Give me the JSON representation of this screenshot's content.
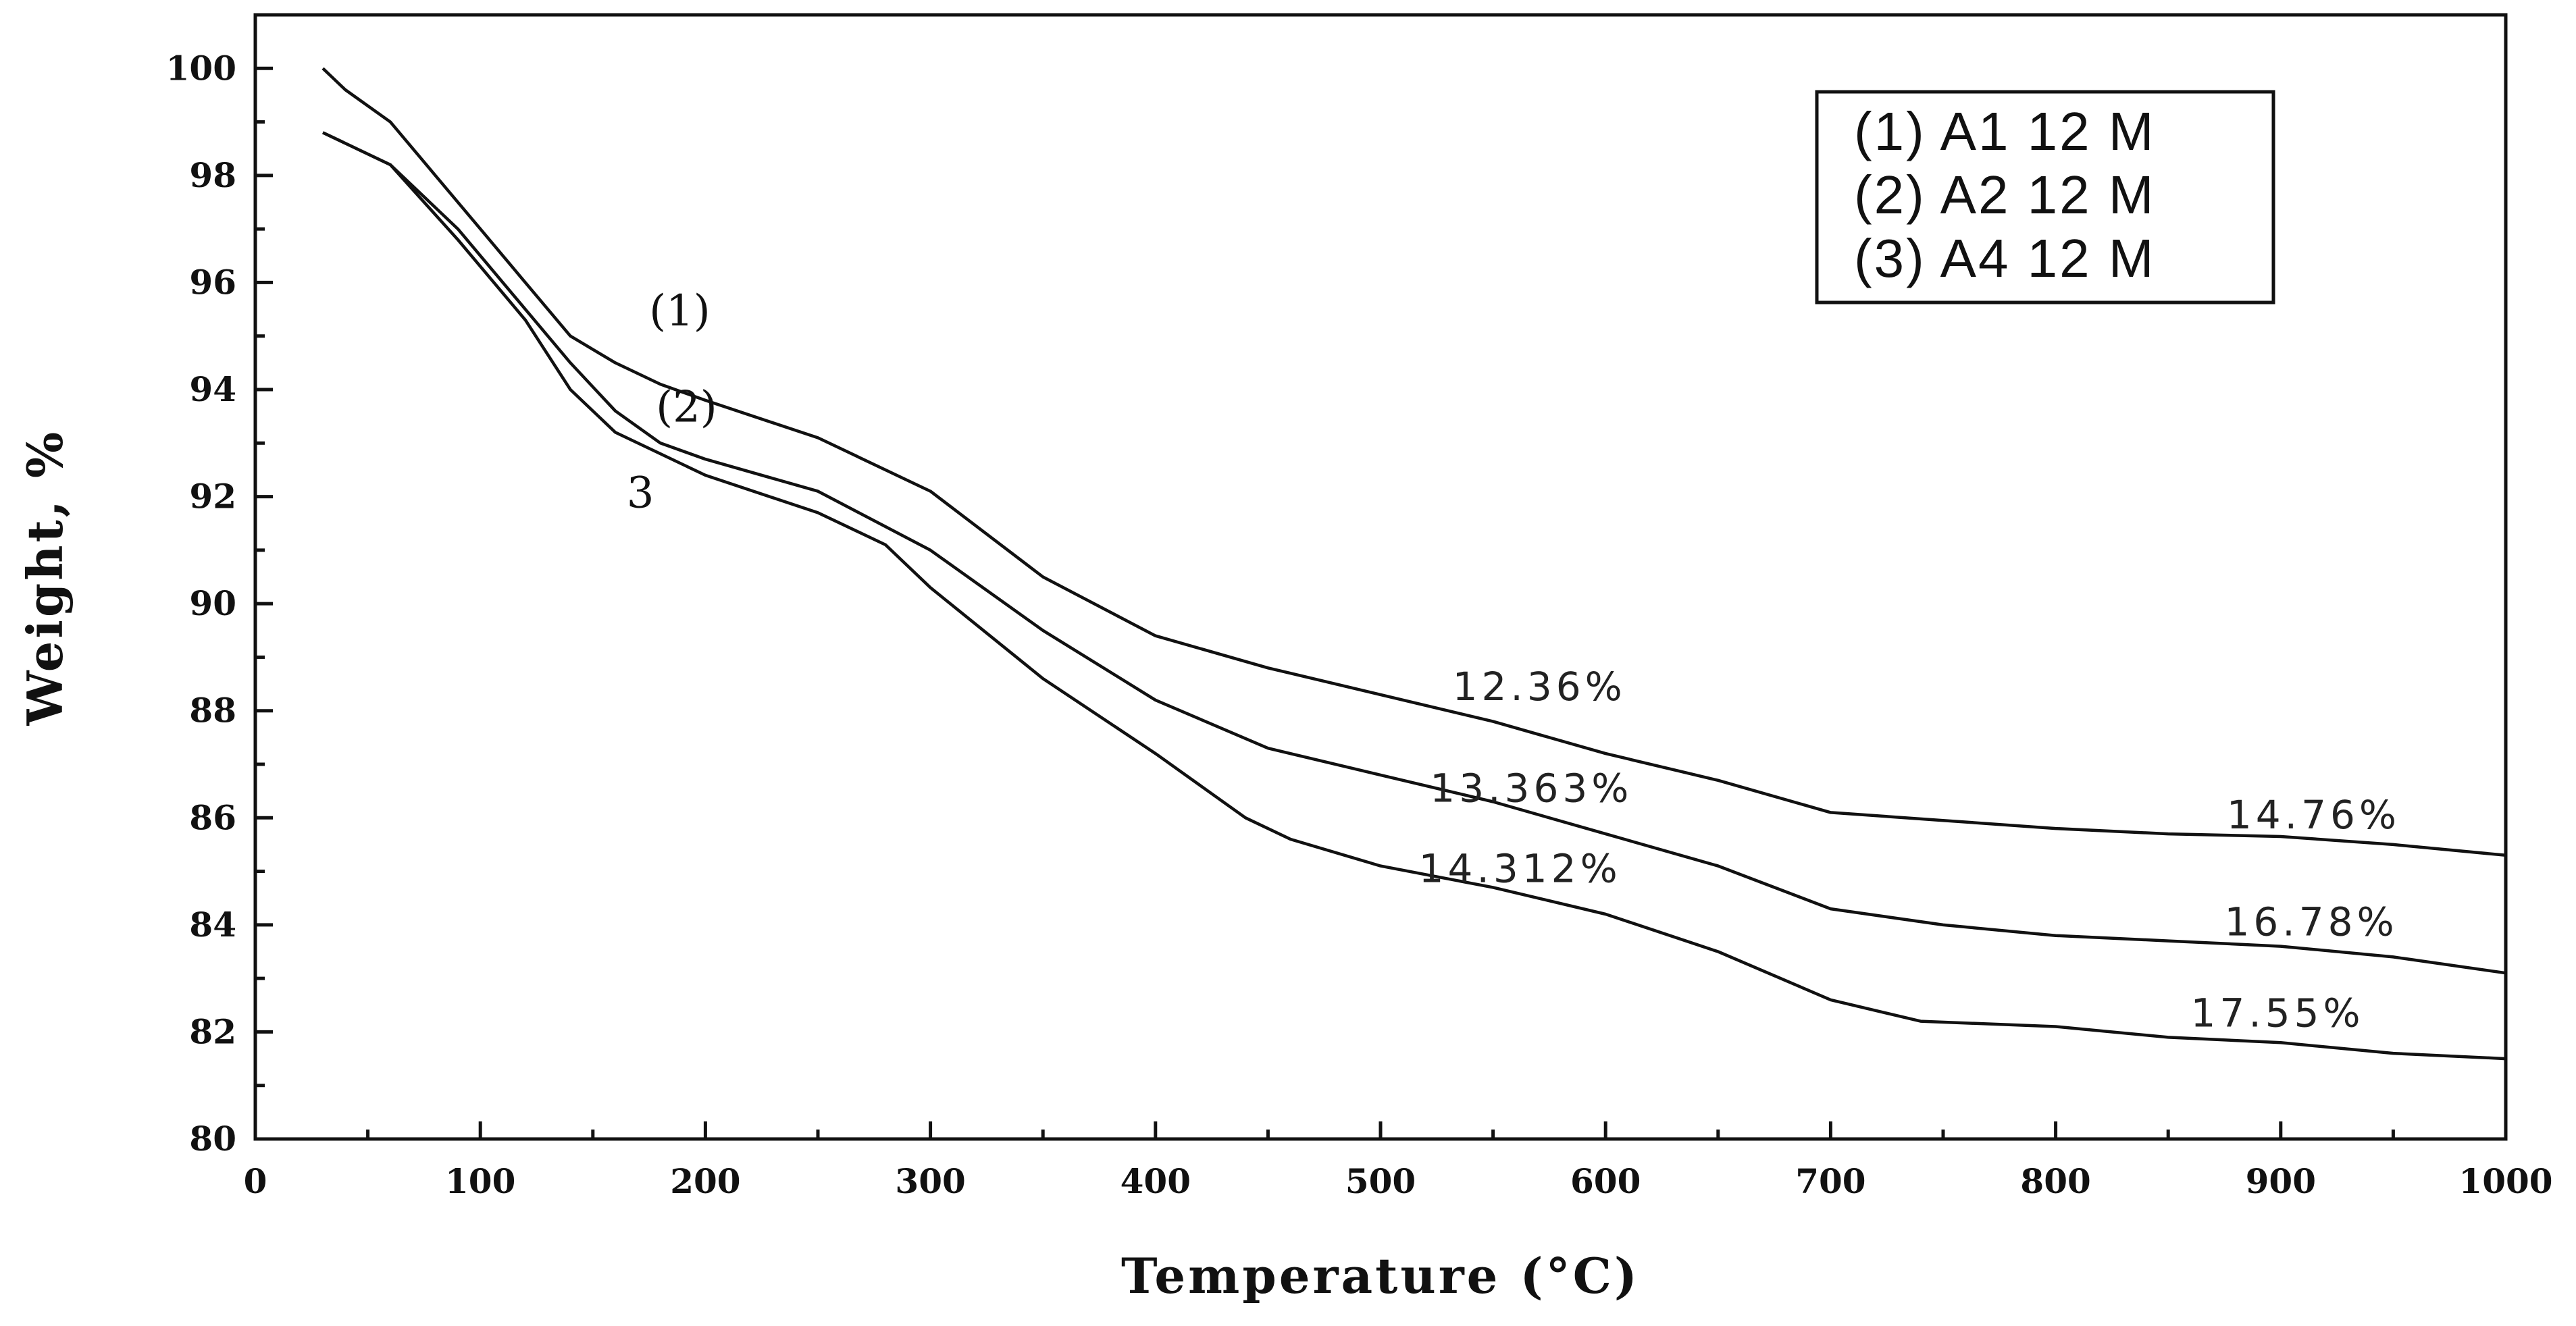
{
  "chart_data": {
    "type": "line",
    "xlabel": "Temperature (°C)",
    "ylabel": "Weight, %",
    "xlim": [
      0,
      1000
    ],
    "ylim": [
      80,
      101
    ],
    "x_ticks": [
      "0",
      "100",
      "200",
      "300",
      "400",
      "500",
      "600",
      "700",
      "800",
      "900",
      "1000"
    ],
    "y_ticks": [
      "80",
      "82",
      "84",
      "86",
      "88",
      "90",
      "92",
      "94",
      "96",
      "98",
      "100"
    ],
    "legend": [
      "(1) A1 12 M",
      "(2) A2 12 M",
      "(3) A4 12 M"
    ],
    "legend_position": "top-right",
    "series": [
      {
        "name": "(1) A1 12 M",
        "label": "(1)",
        "label_at": [
          175,
          95.2
        ],
        "x": [
          30,
          40,
          60,
          80,
          100,
          120,
          140,
          160,
          180,
          200,
          250,
          300,
          350,
          400,
          450,
          500,
          550,
          600,
          650,
          700,
          750,
          800,
          850,
          900,
          950,
          1000
        ],
        "y": [
          100.0,
          99.6,
          99.0,
          98.0,
          97.0,
          96.0,
          95.0,
          94.5,
          94.1,
          93.8,
          93.1,
          92.1,
          90.5,
          89.4,
          88.8,
          88.3,
          87.8,
          87.2,
          86.7,
          86.1,
          85.95,
          85.8,
          85.7,
          85.65,
          85.5,
          85.3
        ]
      },
      {
        "name": "(2) A2 12 M",
        "label": "(2)",
        "label_at": [
          178,
          93.4
        ],
        "x": [
          30,
          60,
          90,
          120,
          140,
          160,
          180,
          200,
          250,
          300,
          350,
          400,
          450,
          500,
          550,
          600,
          650,
          700,
          750,
          800,
          850,
          900,
          950,
          1000
        ],
        "y": [
          98.8,
          98.2,
          97.0,
          95.5,
          94.5,
          93.6,
          93.0,
          92.7,
          92.1,
          91.0,
          89.5,
          88.2,
          87.3,
          86.8,
          86.3,
          85.7,
          85.1,
          84.3,
          84.0,
          83.8,
          83.7,
          83.6,
          83.4,
          83.1
        ]
      },
      {
        "name": "(3) A4 12 M",
        "label": "3",
        "label_at": [
          165,
          91.8
        ],
        "x": [
          30,
          60,
          90,
          120,
          140,
          160,
          180,
          200,
          250,
          280,
          300,
          350,
          400,
          440,
          460,
          500,
          550,
          600,
          650,
          700,
          740,
          800,
          850,
          900,
          950,
          1000
        ],
        "y": [
          98.8,
          98.2,
          96.8,
          95.3,
          94.0,
          93.2,
          92.8,
          92.4,
          91.7,
          91.1,
          90.3,
          88.6,
          87.2,
          86.0,
          85.6,
          85.1,
          84.7,
          84.2,
          83.5,
          82.6,
          82.2,
          82.1,
          81.9,
          81.8,
          81.6,
          81.5
        ]
      }
    ],
    "annotations": [
      {
        "text": "12.36%",
        "x": 532,
        "y": 88.2
      },
      {
        "text": "13.363%",
        "x": 522,
        "y": 86.3
      },
      {
        "text": "14.312%",
        "x": 517,
        "y": 84.8
      },
      {
        "text": "14.76%",
        "x": 876,
        "y": 85.8
      },
      {
        "text": "16.78%",
        "x": 875,
        "y": 83.8
      },
      {
        "text": "17.55%",
        "x": 860,
        "y": 82.1
      }
    ]
  }
}
